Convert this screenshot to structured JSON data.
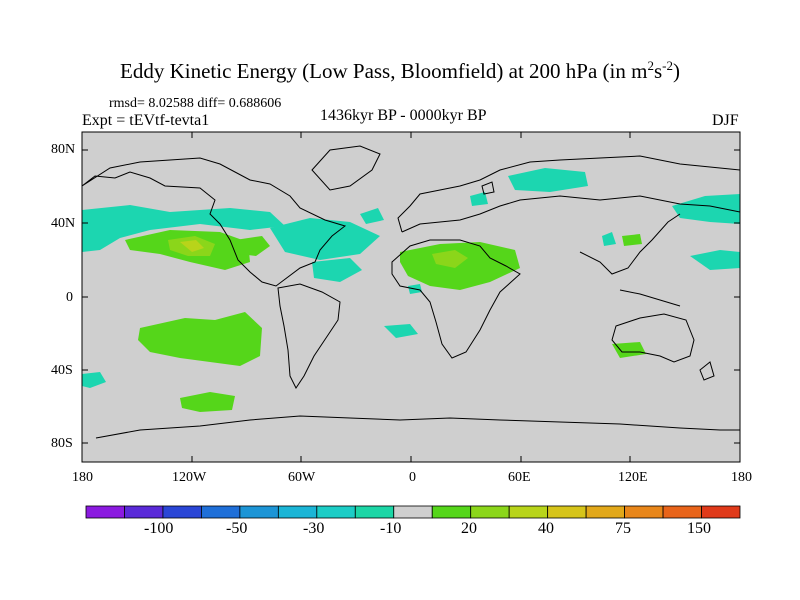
{
  "title": {
    "main": "Eddy Kinetic Energy (Low Pass, Bloomfield) at 200 hPa (in m",
    "sup1": "2",
    "mid": "s",
    "sup2": "-2",
    "end": ")"
  },
  "stats": "rmsd= 8.02588 diff= 0.688606",
  "experiment": "Expt = tEVtf-tevta1",
  "period": "1436kyr BP - 0000kyr BP",
  "season": "DJF",
  "lat_labels": [
    "80N",
    "40N",
    "0",
    "40S",
    "80S"
  ],
  "lon_labels": [
    "180",
    "120W",
    "60W",
    "0",
    "60E",
    "120E",
    "180"
  ],
  "colorbar": {
    "colors": [
      "#8b1ae0",
      "#5a2ad8",
      "#2a46d6",
      "#1f6fd8",
      "#1d95d6",
      "#1bb5d6",
      "#1ccdc6",
      "#1cd6a6",
      "#cfcfcf",
      "#55d61a",
      "#8bd61a",
      "#b8d41a",
      "#d6c41a",
      "#e2a81a",
      "#e8861a",
      "#e8641a",
      "#e03a1a"
    ],
    "labels": [
      "-100",
      "-50",
      "-30",
      "-10",
      "20",
      "40",
      "75",
      "150"
    ]
  }
}
